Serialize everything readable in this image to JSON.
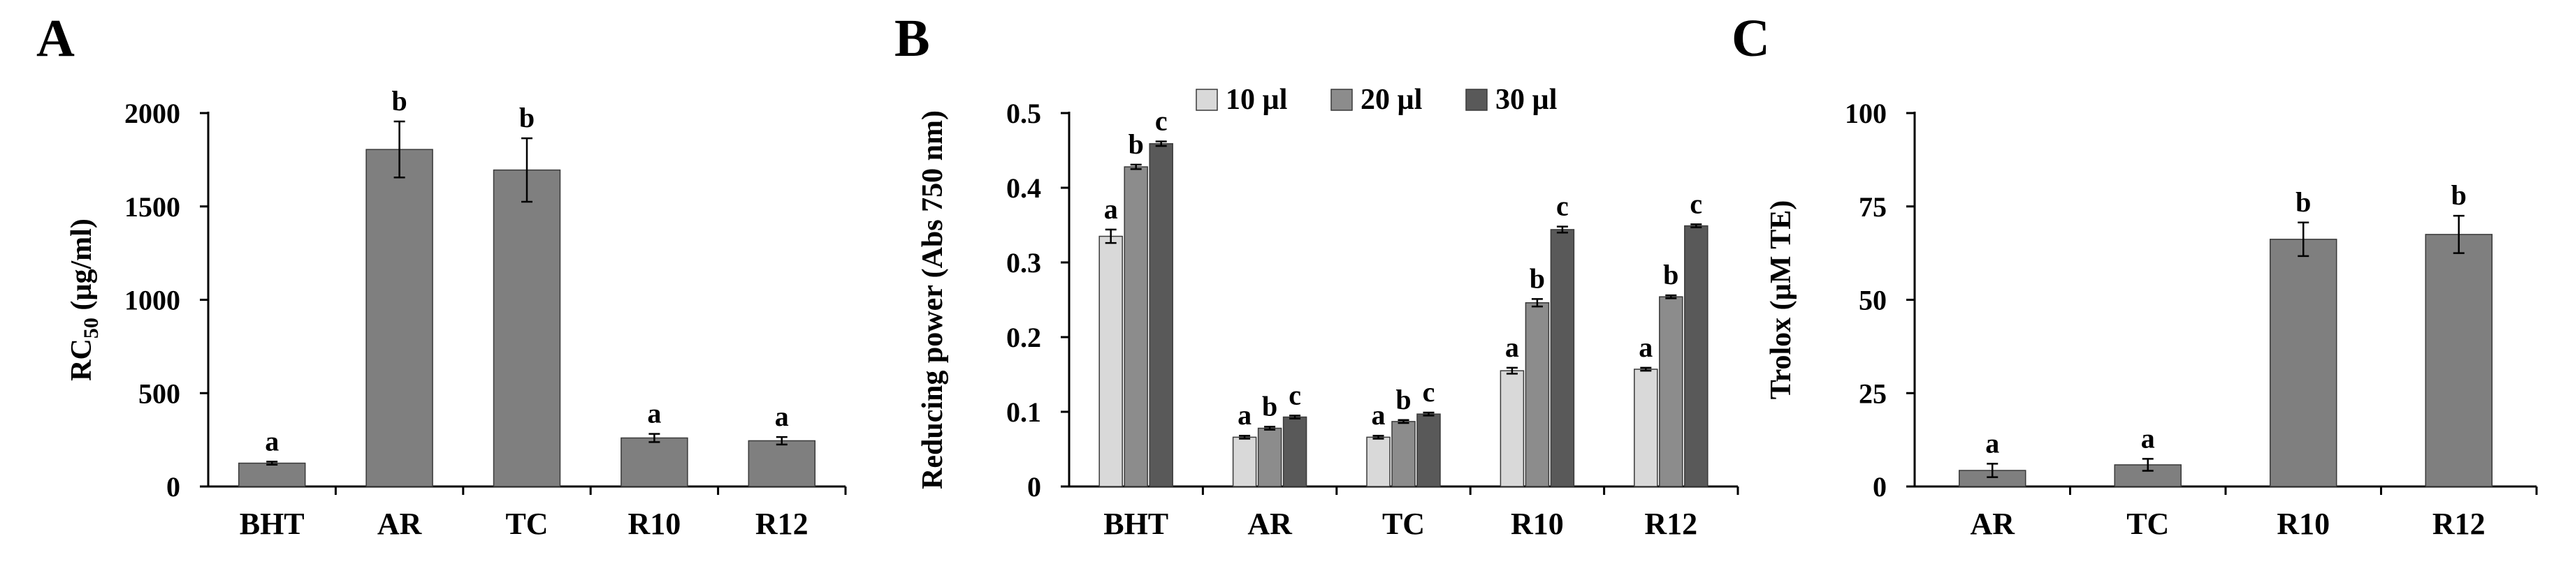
{
  "chart_data": [
    {
      "panel": "A",
      "type": "bar",
      "ylabel_main": "RC",
      "ylabel_sub": "50",
      "ylabel_tail": " (µg/ml)",
      "categories": [
        "BHT",
        "AR",
        "TC",
        "R10",
        "R12"
      ],
      "ylim": [
        0,
        2000
      ],
      "yticks": [
        0,
        500,
        1000,
        1500,
        2000
      ],
      "series": [
        {
          "name": "RC50",
          "color": "#7f7f7f",
          "values": [
            125,
            1805,
            1695,
            260,
            245
          ],
          "errors": [
            8,
            150,
            170,
            22,
            20
          ],
          "letters": [
            "a",
            "b",
            "b",
            "a",
            "a"
          ]
        }
      ]
    },
    {
      "panel": "B",
      "type": "bar",
      "ylabel": "Reducing power (Abs 750 nm)",
      "categories": [
        "BHT",
        "AR",
        "TC",
        "R10",
        "R12"
      ],
      "ylim": [
        0,
        0.5
      ],
      "yticks": [
        0,
        0.1,
        0.2,
        0.3,
        0.4,
        0.5
      ],
      "legend_position": "top",
      "series": [
        {
          "name": "10 µl",
          "color": "#d9d9d9",
          "values": [
            0.335,
            0.066,
            0.066,
            0.155,
            0.157
          ],
          "errors": [
            0.009,
            0.002,
            0.002,
            0.004,
            0.002
          ],
          "letters": [
            "a",
            "a",
            "a",
            "a",
            "a"
          ]
        },
        {
          "name": "20 µl",
          "color": "#8c8c8c",
          "values": [
            0.428,
            0.078,
            0.087,
            0.246,
            0.254
          ],
          "errors": [
            0.003,
            0.002,
            0.002,
            0.005,
            0.002
          ],
          "letters": [
            "b",
            "b",
            "b",
            "b",
            "b"
          ]
        },
        {
          "name": "30 µl",
          "color": "#595959",
          "values": [
            0.459,
            0.093,
            0.097,
            0.344,
            0.349
          ],
          "errors": [
            0.003,
            0.002,
            0.002,
            0.004,
            0.002
          ],
          "letters": [
            "c",
            "c",
            "c",
            "c",
            "c"
          ]
        }
      ]
    },
    {
      "panel": "C",
      "type": "bar",
      "ylabel": "Trolox (µM TE)",
      "categories": [
        "AR",
        "TC",
        "R10",
        "R12"
      ],
      "ylim": [
        0,
        100
      ],
      "yticks": [
        0,
        25,
        50,
        75,
        100
      ],
      "series": [
        {
          "name": "Trolox",
          "color": "#7f7f7f",
          "values": [
            4.3,
            5.8,
            66.2,
            67.5
          ],
          "errors": [
            1.8,
            1.6,
            4.5,
            5.0
          ],
          "letters": [
            "a",
            "a",
            "b",
            "b"
          ]
        }
      ]
    }
  ]
}
